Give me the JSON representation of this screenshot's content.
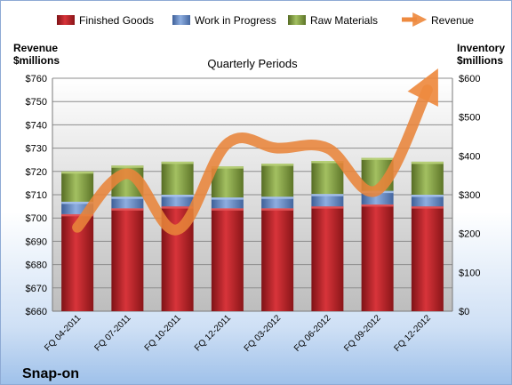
{
  "chart_data": {
    "type": "bar",
    "title": "Quarterly Periods",
    "company": "Snap-on",
    "left_axis": {
      "label_line1": "Revenue",
      "label_line2": "$millions",
      "min": 660,
      "max": 760,
      "step": 10,
      "prefix": "$"
    },
    "right_axis": {
      "label_line1": "Inventory",
      "label_line2": "$millions",
      "min": 0,
      "max": 600,
      "step": 100,
      "prefix": "$"
    },
    "categories": [
      "FQ 04-2011",
      "FQ 07-2011",
      "FQ 10-2011",
      "FQ 12-2011",
      "FQ 03-2012",
      "FQ 06-2012",
      "FQ 09-2012",
      "FQ 12-2012"
    ],
    "series": [
      {
        "name": "Finished Goods",
        "type": "stacked-bar",
        "axis": "right",
        "color": "#c0272d",
        "values": [
          250,
          265,
          270,
          265,
          265,
          270,
          275,
          270
        ]
      },
      {
        "name": "Work in Progress",
        "type": "stacked-bar",
        "axis": "right",
        "color": "#6f8fc9",
        "values": [
          32,
          30,
          30,
          28,
          30,
          32,
          35,
          30
        ]
      },
      {
        "name": "Raw Materials",
        "type": "stacked-bar",
        "axis": "right",
        "color": "#87a548",
        "values": [
          78,
          80,
          85,
          80,
          85,
          85,
          85,
          85
        ]
      },
      {
        "name": "Revenue",
        "type": "line",
        "axis": "left",
        "color": "#e8843a",
        "values": [
          696,
          719,
          695,
          732,
          730,
          730,
          712,
          755
        ]
      }
    ],
    "legend_position": "top",
    "grid": true
  }
}
